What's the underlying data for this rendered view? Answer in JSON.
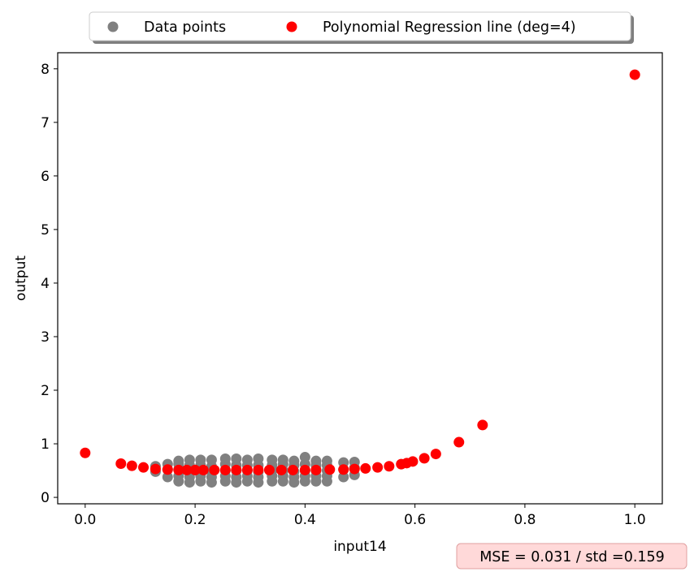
{
  "chart_data": {
    "type": "scatter",
    "xlabel": "input14",
    "ylabel": "output",
    "xlim": [
      -0.05,
      1.05
    ],
    "ylim": [
      -0.12,
      8.3
    ],
    "xticks": [
      0.0,
      0.2,
      0.4,
      0.6,
      0.8,
      1.0
    ],
    "yticks": [
      0,
      1,
      2,
      3,
      4,
      5,
      6,
      7,
      8
    ],
    "grid": false,
    "legend_position": "top-center, outside plot",
    "series": [
      {
        "name": "Data points",
        "color": "#808080",
        "points": [
          [
            0.128,
            0.48
          ],
          [
            0.128,
            0.58
          ],
          [
            0.15,
            0.38
          ],
          [
            0.15,
            0.52
          ],
          [
            0.15,
            0.62
          ],
          [
            0.17,
            0.3
          ],
          [
            0.17,
            0.4
          ],
          [
            0.17,
            0.52
          ],
          [
            0.17,
            0.62
          ],
          [
            0.17,
            0.68
          ],
          [
            0.19,
            0.28
          ],
          [
            0.19,
            0.38
          ],
          [
            0.19,
            0.5
          ],
          [
            0.19,
            0.6
          ],
          [
            0.19,
            0.7
          ],
          [
            0.21,
            0.3
          ],
          [
            0.21,
            0.4
          ],
          [
            0.21,
            0.5
          ],
          [
            0.21,
            0.6
          ],
          [
            0.21,
            0.7
          ],
          [
            0.23,
            0.28
          ],
          [
            0.23,
            0.38
          ],
          [
            0.23,
            0.48
          ],
          [
            0.23,
            0.58
          ],
          [
            0.23,
            0.7
          ],
          [
            0.255,
            0.3
          ],
          [
            0.255,
            0.4
          ],
          [
            0.255,
            0.5
          ],
          [
            0.255,
            0.62
          ],
          [
            0.255,
            0.72
          ],
          [
            0.275,
            0.28
          ],
          [
            0.275,
            0.38
          ],
          [
            0.275,
            0.5
          ],
          [
            0.275,
            0.6
          ],
          [
            0.275,
            0.72
          ],
          [
            0.295,
            0.3
          ],
          [
            0.295,
            0.4
          ],
          [
            0.295,
            0.5
          ],
          [
            0.295,
            0.6
          ],
          [
            0.295,
            0.7
          ],
          [
            0.315,
            0.28
          ],
          [
            0.315,
            0.38
          ],
          [
            0.315,
            0.48
          ],
          [
            0.315,
            0.6
          ],
          [
            0.315,
            0.72
          ],
          [
            0.34,
            0.3
          ],
          [
            0.34,
            0.4
          ],
          [
            0.34,
            0.5
          ],
          [
            0.34,
            0.6
          ],
          [
            0.34,
            0.7
          ],
          [
            0.36,
            0.3
          ],
          [
            0.36,
            0.4
          ],
          [
            0.36,
            0.5
          ],
          [
            0.36,
            0.62
          ],
          [
            0.36,
            0.7
          ],
          [
            0.38,
            0.28
          ],
          [
            0.38,
            0.38
          ],
          [
            0.38,
            0.48
          ],
          [
            0.38,
            0.6
          ],
          [
            0.38,
            0.68
          ],
          [
            0.4,
            0.3
          ],
          [
            0.4,
            0.4
          ],
          [
            0.4,
            0.5
          ],
          [
            0.4,
            0.62
          ],
          [
            0.4,
            0.75
          ],
          [
            0.42,
            0.3
          ],
          [
            0.42,
            0.4
          ],
          [
            0.42,
            0.5
          ],
          [
            0.42,
            0.6
          ],
          [
            0.42,
            0.68
          ],
          [
            0.44,
            0.3
          ],
          [
            0.44,
            0.4
          ],
          [
            0.44,
            0.5
          ],
          [
            0.44,
            0.6
          ],
          [
            0.44,
            0.68
          ],
          [
            0.47,
            0.38
          ],
          [
            0.47,
            0.52
          ],
          [
            0.47,
            0.65
          ],
          [
            0.49,
            0.42
          ],
          [
            0.49,
            0.55
          ],
          [
            0.49,
            0.66
          ]
        ]
      },
      {
        "name": "Polynomial Regression line (deg=4)",
        "color": "#ff0000",
        "points": [
          [
            0.0,
            0.83
          ],
          [
            0.065,
            0.63
          ],
          [
            0.085,
            0.59
          ],
          [
            0.106,
            0.56
          ],
          [
            0.128,
            0.53
          ],
          [
            0.15,
            0.52
          ],
          [
            0.17,
            0.51
          ],
          [
            0.185,
            0.51
          ],
          [
            0.2,
            0.51
          ],
          [
            0.215,
            0.51
          ],
          [
            0.235,
            0.51
          ],
          [
            0.255,
            0.51
          ],
          [
            0.275,
            0.51
          ],
          [
            0.295,
            0.51
          ],
          [
            0.315,
            0.51
          ],
          [
            0.335,
            0.51
          ],
          [
            0.357,
            0.51
          ],
          [
            0.378,
            0.51
          ],
          [
            0.4,
            0.51
          ],
          [
            0.42,
            0.51
          ],
          [
            0.445,
            0.52
          ],
          [
            0.47,
            0.52
          ],
          [
            0.49,
            0.53
          ],
          [
            0.51,
            0.54
          ],
          [
            0.532,
            0.56
          ],
          [
            0.553,
            0.58
          ],
          [
            0.575,
            0.62
          ],
          [
            0.585,
            0.64
          ],
          [
            0.596,
            0.67
          ],
          [
            0.617,
            0.73
          ],
          [
            0.638,
            0.81
          ],
          [
            0.68,
            1.03
          ],
          [
            0.723,
            1.35
          ],
          [
            1.0,
            7.89
          ]
        ]
      }
    ],
    "legend": [
      "Data points",
      "Polynomial Regression line (deg=4)"
    ],
    "annotation": {
      "text": "MSE = 0.031 / std =0.159",
      "background": "#ffd9d9",
      "border": "#e0a0a0"
    }
  }
}
